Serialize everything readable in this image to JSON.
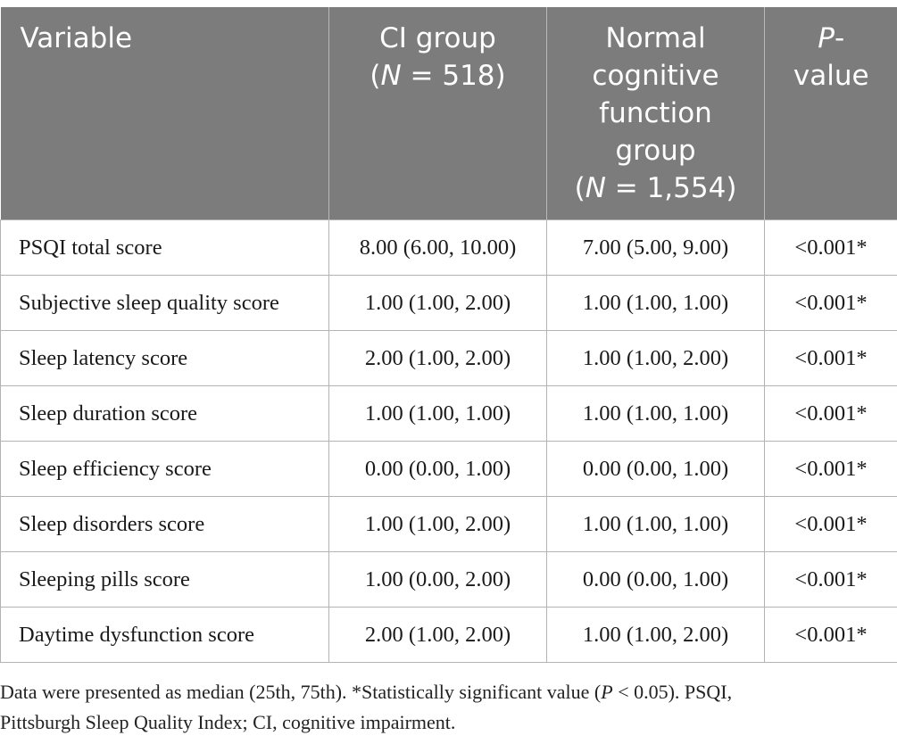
{
  "header": {
    "variable": "Variable",
    "ci_group": {
      "line1": "CI group",
      "n_label": "N",
      "n_value": " = 518)"
    },
    "normal_group": {
      "line1": "Normal",
      "line2": "cognitive",
      "line3": "function",
      "line4": "group",
      "n_label": "N",
      "n_value": " = 1,554)"
    },
    "p_value": {
      "p": "P",
      "dash": "-",
      "line2": "value"
    }
  },
  "rows": [
    {
      "variable": "PSQI total score",
      "ci": "8.00 (6.00, 10.00)",
      "normal": "7.00 (5.00, 9.00)",
      "p": "<0.001*"
    },
    {
      "variable": "Subjective sleep quality score",
      "ci": "1.00 (1.00, 2.00)",
      "normal": "1.00 (1.00, 1.00)",
      "p": "<0.001*"
    },
    {
      "variable": "Sleep latency score",
      "ci": "2.00 (1.00, 2.00)",
      "normal": "1.00 (1.00, 2.00)",
      "p": "<0.001*"
    },
    {
      "variable": "Sleep duration score",
      "ci": "1.00 (1.00, 1.00)",
      "normal": "1.00 (1.00, 1.00)",
      "p": "<0.001*"
    },
    {
      "variable": "Sleep efficiency score",
      "ci": "0.00 (0.00, 1.00)",
      "normal": "0.00 (0.00, 1.00)",
      "p": "<0.001*"
    },
    {
      "variable": "Sleep disorders score",
      "ci": "1.00 (1.00, 2.00)",
      "normal": "1.00 (1.00, 1.00)",
      "p": "<0.001*"
    },
    {
      "variable": "Sleeping pills score",
      "ci": "1.00 (0.00, 2.00)",
      "normal": "0.00 (0.00, 1.00)",
      "p": "<0.001*"
    },
    {
      "variable": "Daytime dysfunction score",
      "ci": "2.00 (1.00, 2.00)",
      "normal": "1.00 (1.00, 2.00)",
      "p": "<0.001*"
    }
  ],
  "footnote": {
    "part1": "Data were presented as median (25th, 75th). *Statistically significant value (",
    "p": "P",
    "part2": " < 0.05). PSQI,",
    "line2": "Pittsburgh Sleep Quality Index; CI, cognitive impairment."
  },
  "colors": {
    "header_bg": "#7c7c7c",
    "header_text": "#ffffff",
    "border": "#b3b3b3"
  }
}
